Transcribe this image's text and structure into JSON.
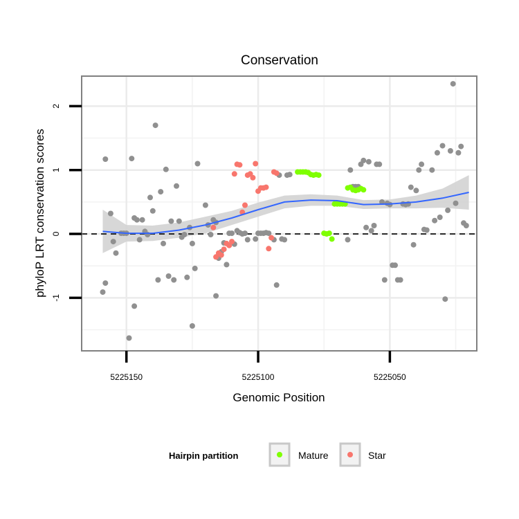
{
  "chart_data": {
    "type": "scatter",
    "title": "Conservation",
    "xlabel": "Genomic Position",
    "ylabel": "phyloP LRT conservation scores",
    "x_reversed": true,
    "xlim": [
      5225167,
      5225017
    ],
    "ylim": [
      -1.83,
      2.47
    ],
    "x_ticks": [
      5225150,
      5225100,
      5225050
    ],
    "x_tick_labels": [
      "5225150",
      "5225100",
      "5225050"
    ],
    "y_ticks": [
      -1,
      0,
      1,
      2
    ],
    "y_tick_labels": [
      "-1",
      "0",
      "1",
      "2"
    ],
    "reference_line": {
      "y": 0,
      "style": "dashed"
    },
    "legend": {
      "title": "Hairpin partition",
      "position": "bottom",
      "entries": [
        {
          "label": "Mature",
          "color": "#7fff00"
        },
        {
          "label": "Star",
          "color": "#f8766d"
        }
      ]
    },
    "colors": {
      "other": "#909090",
      "mature": "#7fff00",
      "star": "#f8766d",
      "smooth": "#3366ff",
      "ribbon": "#d3d3d3"
    },
    "smooth": {
      "x": [
        5225159,
        5225150,
        5225140,
        5225130,
        5225120,
        5225110,
        5225100,
        5225090,
        5225080,
        5225070,
        5225060,
        5225050,
        5225040,
        5225030,
        5225020
      ],
      "y": [
        0.04,
        0.01,
        0.01,
        0.06,
        0.14,
        0.25,
        0.38,
        0.5,
        0.53,
        0.52,
        0.46,
        0.47,
        0.5,
        0.56,
        0.65
      ],
      "lo": [
        -0.3,
        -0.12,
        -0.11,
        -0.06,
        0.01,
        0.14,
        0.27,
        0.4,
        0.44,
        0.44,
        0.39,
        0.4,
        0.4,
        0.41,
        0.38
      ],
      "hi": [
        0.38,
        0.14,
        0.13,
        0.18,
        0.27,
        0.36,
        0.49,
        0.6,
        0.62,
        0.6,
        0.53,
        0.54,
        0.6,
        0.71,
        0.92
      ]
    },
    "series": [
      {
        "name": "Other",
        "points": [
          [
            5225158,
            1.17
          ],
          [
            5225156,
            0.32
          ],
          [
            5225155,
            -0.12
          ],
          [
            5225154,
            -0.3
          ],
          [
            5225152,
            0.01
          ],
          [
            5225151,
            0.01
          ],
          [
            5225150,
            0.01
          ],
          [
            5225148,
            1.18
          ],
          [
            5225147,
            0.25
          ],
          [
            5225146,
            0.22
          ],
          [
            5225145,
            -0.09
          ],
          [
            5225144,
            0.22
          ],
          [
            5225143,
            0.04
          ],
          [
            5225142,
            -0.01
          ],
          [
            5225141,
            0.57
          ],
          [
            5225140,
            0.36
          ],
          [
            5225139,
            1.7
          ],
          [
            5225138,
            -0.72
          ],
          [
            5225137,
            0.66
          ],
          [
            5225136,
            -0.15
          ],
          [
            5225135,
            1.01
          ],
          [
            5225134,
            -0.66
          ],
          [
            5225133,
            0.2
          ],
          [
            5225132,
            -0.72
          ],
          [
            5225131,
            0.75
          ],
          [
            5225130,
            0.2
          ],
          [
            5225129,
            -0.05
          ],
          [
            5225128,
            -0.01
          ],
          [
            5225127,
            -0.68
          ],
          [
            5225126,
            0.1
          ],
          [
            5225125,
            -0.15
          ],
          [
            5225124,
            -0.54
          ],
          [
            5225123,
            1.1
          ],
          [
            5225120,
            0.45
          ],
          [
            5225119,
            0.14
          ],
          [
            5225118,
            -0.01
          ],
          [
            5225117,
            0.22
          ],
          [
            5225116,
            0.18
          ],
          [
            5225115,
            -0.38
          ],
          [
            5225114,
            -0.28
          ],
          [
            5225113,
            -0.14
          ],
          [
            5225112,
            -0.48
          ],
          [
            5225111,
            0.01
          ],
          [
            5225109,
            -0.16
          ],
          [
            5225159,
            -0.91
          ],
          [
            5225158,
            -0.77
          ],
          [
            5225149,
            -1.63
          ],
          [
            5225147,
            -1.13
          ],
          [
            5225125,
            -1.44
          ],
          [
            5225116,
            -0.97
          ],
          [
            5225107,
            0.02
          ],
          [
            5225105,
            0.01
          ],
          [
            5225104,
            -0.09
          ],
          [
            5225101,
            -0.08
          ],
          [
            5225100,
            0.01
          ],
          [
            5225099,
            0.01
          ],
          [
            5225098,
            0.01
          ],
          [
            5225097,
            0.02
          ],
          [
            5225096,
            0.01
          ],
          [
            5225094,
            -0.09
          ],
          [
            5225093,
            -0.8
          ],
          [
            5225092,
            0.92
          ],
          [
            5225091,
            -0.08
          ],
          [
            5225090,
            -0.09
          ],
          [
            5225089,
            0.92
          ],
          [
            5225088,
            0.93
          ],
          [
            5225066,
            -0.09
          ],
          [
            5225065,
            1.0
          ],
          [
            5225064,
            0.74
          ],
          [
            5225063,
            0.74
          ],
          [
            5225062,
            0.74
          ],
          [
            5225061,
            1.09
          ],
          [
            5225060,
            1.15
          ],
          [
            5225059,
            0.1
          ],
          [
            5225058,
            1.13
          ],
          [
            5225057,
            0.05
          ],
          [
            5225056,
            0.13
          ],
          [
            5225055,
            1.09
          ],
          [
            5225054,
            1.09
          ],
          [
            5225053,
            0.5
          ],
          [
            5225052,
            -0.72
          ],
          [
            5225051,
            0.48
          ],
          [
            5225050,
            0.46
          ],
          [
            5225049,
            -0.49
          ],
          [
            5225048,
            -0.49
          ],
          [
            5225047,
            -0.72
          ],
          [
            5225046,
            -0.72
          ],
          [
            5225045,
            0.47
          ],
          [
            5225044,
            0.46
          ],
          [
            5225043,
            0.47
          ],
          [
            5225042,
            0.73
          ],
          [
            5225041,
            -0.17
          ],
          [
            5225040,
            0.68
          ],
          [
            5225039,
            1.0
          ],
          [
            5225038,
            1.09
          ],
          [
            5225037,
            0.07
          ],
          [
            5225036,
            0.06
          ],
          [
            5225034,
            1.0
          ],
          [
            5225033,
            0.21
          ],
          [
            5225032,
            1.27
          ],
          [
            5225031,
            0.26
          ],
          [
            5225030,
            1.38
          ],
          [
            5225029,
            -1.02
          ],
          [
            5225028,
            0.37
          ],
          [
            5225027,
            1.3
          ],
          [
            5225026,
            2.35
          ],
          [
            5225025,
            0.48
          ],
          [
            5225024,
            1.27
          ],
          [
            5225023,
            1.37
          ],
          [
            5225022,
            0.17
          ],
          [
            5225021,
            0.13
          ],
          [
            5225110,
            0.01
          ],
          [
            5225108,
            0.05
          ],
          [
            5225106,
            0.0
          ]
        ]
      },
      {
        "name": "Mature",
        "points": [
          [
            5225085,
            0.97
          ],
          [
            5225084,
            0.97
          ],
          [
            5225083,
            0.97
          ],
          [
            5225082,
            0.97
          ],
          [
            5225081,
            0.96
          ],
          [
            5225080,
            0.93
          ],
          [
            5225079,
            0.92
          ],
          [
            5225078,
            0.93
          ],
          [
            5225077,
            0.92
          ],
          [
            5225075,
            0.01
          ],
          [
            5225074,
            0.0
          ],
          [
            5225073,
            0.01
          ],
          [
            5225072,
            -0.08
          ],
          [
            5225071,
            0.47
          ],
          [
            5225070,
            0.47
          ],
          [
            5225069,
            0.47
          ],
          [
            5225068,
            0.47
          ],
          [
            5225067,
            0.47
          ],
          [
            5225066,
            0.72
          ],
          [
            5225065,
            0.73
          ],
          [
            5225064,
            0.69
          ],
          [
            5225063,
            0.68
          ],
          [
            5225062,
            0.69
          ],
          [
            5225061,
            0.71
          ],
          [
            5225060,
            0.69
          ]
        ]
      },
      {
        "name": "Star",
        "points": [
          [
            5225117,
            0.1
          ],
          [
            5225116,
            -0.36
          ],
          [
            5225115,
            -0.3
          ],
          [
            5225114,
            -0.33
          ],
          [
            5225113,
            -0.24
          ],
          [
            5225112,
            -0.15
          ],
          [
            5225111,
            -0.18
          ],
          [
            5225110,
            -0.12
          ],
          [
            5225109,
            0.94
          ],
          [
            5225108,
            1.09
          ],
          [
            5225107,
            1.08
          ],
          [
            5225106,
            0.34
          ],
          [
            5225105,
            0.45
          ],
          [
            5225104,
            0.92
          ],
          [
            5225103,
            0.94
          ],
          [
            5225102,
            0.88
          ],
          [
            5225101,
            1.1
          ],
          [
            5225100,
            0.67
          ],
          [
            5225099,
            0.72
          ],
          [
            5225098,
            0.72
          ],
          [
            5225097,
            0.73
          ],
          [
            5225096,
            -0.23
          ],
          [
            5225095,
            -0.06
          ],
          [
            5225094,
            0.97
          ],
          [
            5225093,
            0.95
          ]
        ]
      }
    ]
  }
}
